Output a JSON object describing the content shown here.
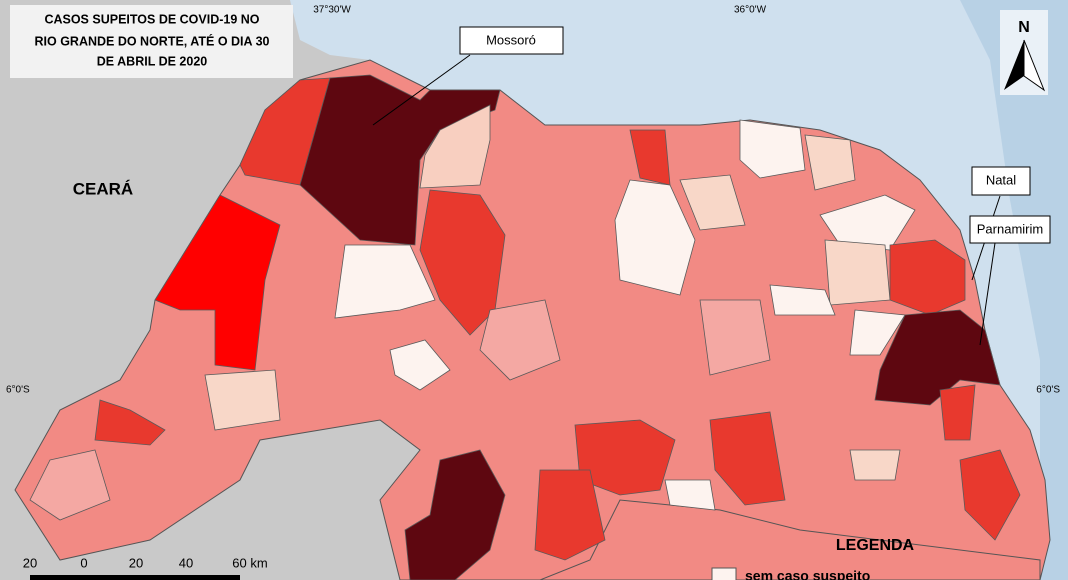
{
  "title": {
    "lines": [
      "CASOS SUPEITOS DE COVID-19 NO",
      "RIO GRANDE DO NORTE, ATÉ O DIA 30",
      "DE ABRIL DE 2020"
    ]
  },
  "graticule": {
    "lon_left": "37°30'W",
    "lon_right": "36°0'W",
    "lat_left": "6°0'S",
    "lat_right": "6°0'S"
  },
  "places": {
    "state": "CEARÁ",
    "mossoro": "Mossoró",
    "natal": "Natal",
    "parnamirim": "Parnamirim"
  },
  "north_arrow": "N",
  "scale_bar": [
    "20",
    "0",
    "20",
    "40",
    "60 km"
  ],
  "legend": {
    "title": "LEGENDA",
    "items": [
      "sem caso suspeito"
    ]
  }
}
